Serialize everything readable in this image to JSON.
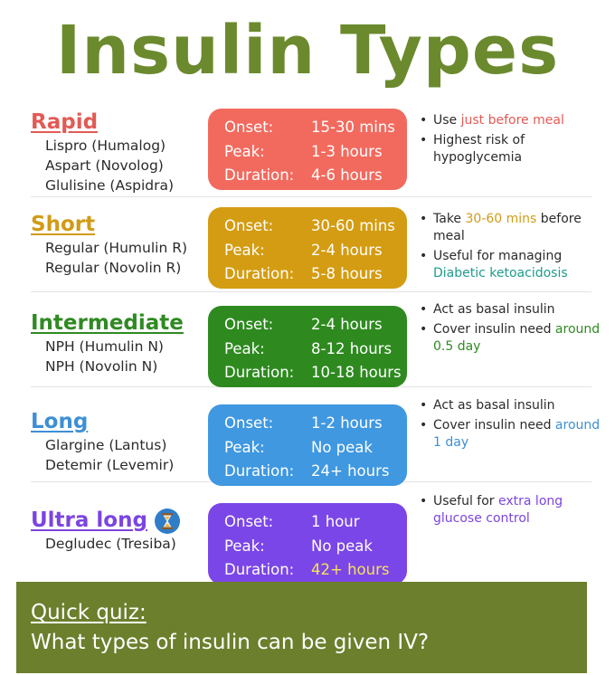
{
  "title": "Insulin Types",
  "card_labels": {
    "onset": "Onset:",
    "peak": "Peak:",
    "duration": "Duration:"
  },
  "types": [
    {
      "name": "Rapid",
      "name_color": "#e35a55",
      "card_color": "#f26a5e",
      "drugs": [
        "Lispro (Humalog)",
        "Aspart (Novolog)",
        "Glulisine (Aspidra)"
      ],
      "onset": "15-30 mins",
      "peak": "1-3 hours",
      "duration": "4-6 hours",
      "notes": [
        {
          "pre": "Use ",
          "em": "just before meal",
          "post": "",
          "em_color": "#e35a55"
        },
        {
          "pre": "Highest risk of hypoglycemia",
          "em": "",
          "post": "",
          "em_color": ""
        }
      ]
    },
    {
      "name": "Short",
      "name_color": "#d19b17",
      "card_color": "#d49c12",
      "drugs": [
        "Regular (Humulin R)",
        "Regular (Novolin R)"
      ],
      "onset": "30-60 mins",
      "peak": "2-4 hours",
      "duration": "5-8 hours",
      "notes": [
        {
          "pre": "Take ",
          "em": "30-60 mins",
          "post": " before meal",
          "em_color": "#d19b17"
        },
        {
          "pre": "Useful for managing ",
          "em": "Diabetic ketoacidosis",
          "post": "",
          "em_color": "#1e9c8c"
        }
      ]
    },
    {
      "name": "Intermediate",
      "name_color": "#2f8a22",
      "card_color": "#2e8a1f",
      "drugs": [
        "NPH (Humulin N)",
        "NPH (Novolin N)"
      ],
      "onset": "2-4 hours",
      "peak": "8-12 hours",
      "duration": "10-18 hours",
      "notes": [
        {
          "pre": "Act as basal insulin",
          "em": "",
          "post": "",
          "em_color": ""
        },
        {
          "pre": "Cover insulin need ",
          "em": "around 0.5 day",
          "post": "",
          "em_color": "#2f8a22"
        }
      ]
    },
    {
      "name": "Long",
      "name_color": "#3d8fd4",
      "card_color": "#3f98e0",
      "drugs": [
        "Glargine (Lantus)",
        "Detemir (Levemir)"
      ],
      "onset": "1-2 hours",
      "peak": "No peak",
      "duration": "24+ hours",
      "notes": [
        {
          "pre": "Act as basal insulin",
          "em": "",
          "post": "",
          "em_color": ""
        },
        {
          "pre": "Cover insulin need ",
          "em": "around 1 day",
          "post": "",
          "em_color": "#3d8fd4"
        }
      ]
    },
    {
      "name": "Ultra long",
      "name_color": "#7b45e0",
      "card_color": "#7b46e8",
      "icon": "hourglass-icon",
      "drugs": [
        "Degludec (Tresiba)"
      ],
      "onset": "1 hour",
      "peak": "No peak",
      "duration": "42+ hours",
      "duration_highlight": true,
      "notes": [
        {
          "pre": "Useful for ",
          "em": "extra long glucose control",
          "post": "",
          "em_color": "#7b45e0"
        }
      ]
    }
  ],
  "quiz": {
    "label": "Quick quiz:",
    "question": "What types of insulin can be given IV?",
    "background": "#6b7f2d"
  }
}
